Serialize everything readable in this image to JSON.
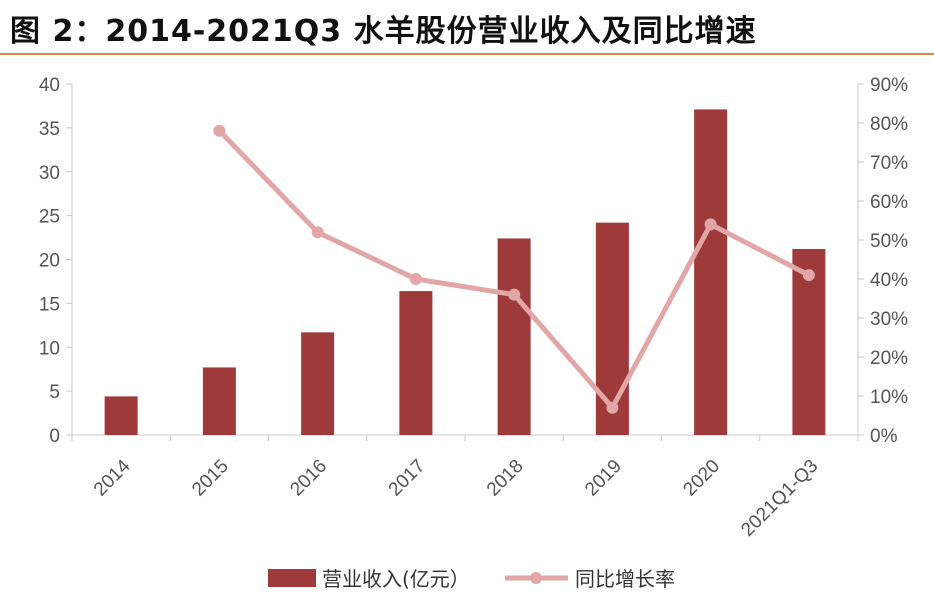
{
  "title": "图 2：2014-2021Q3 水羊股份营业收入及同比增速",
  "colors": {
    "bar": "#9e3a3a",
    "line": "#e2a6a6",
    "axis": "#c8c8c8",
    "title_rule": "#d9874a"
  },
  "chart_data": {
    "type": "bar",
    "categories": [
      "2014",
      "2015",
      "2016",
      "2017",
      "2018",
      "2019",
      "2020",
      "2021Q1-Q3"
    ],
    "series": [
      {
        "name": "营业收入(亿元）",
        "type": "bar",
        "axis": "left",
        "values": [
          4.4,
          7.7,
          11.7,
          16.4,
          22.4,
          24.2,
          37.1,
          21.2
        ]
      },
      {
        "name": "同比增长率",
        "type": "line",
        "axis": "right",
        "values": [
          null,
          0.78,
          0.52,
          0.4,
          0.36,
          0.07,
          0.54,
          0.41
        ]
      }
    ],
    "ylim_left": [
      0,
      40
    ],
    "yticks_left": [
      "0",
      "5",
      "10",
      "15",
      "20",
      "25",
      "30",
      "35",
      "40"
    ],
    "ylim_right": [
      0,
      0.9
    ],
    "yticks_right": [
      "0%",
      "10%",
      "20%",
      "30%",
      "40%",
      "50%",
      "60%",
      "70%",
      "80%",
      "90%"
    ],
    "grid": false,
    "legend_position": "bottom"
  }
}
